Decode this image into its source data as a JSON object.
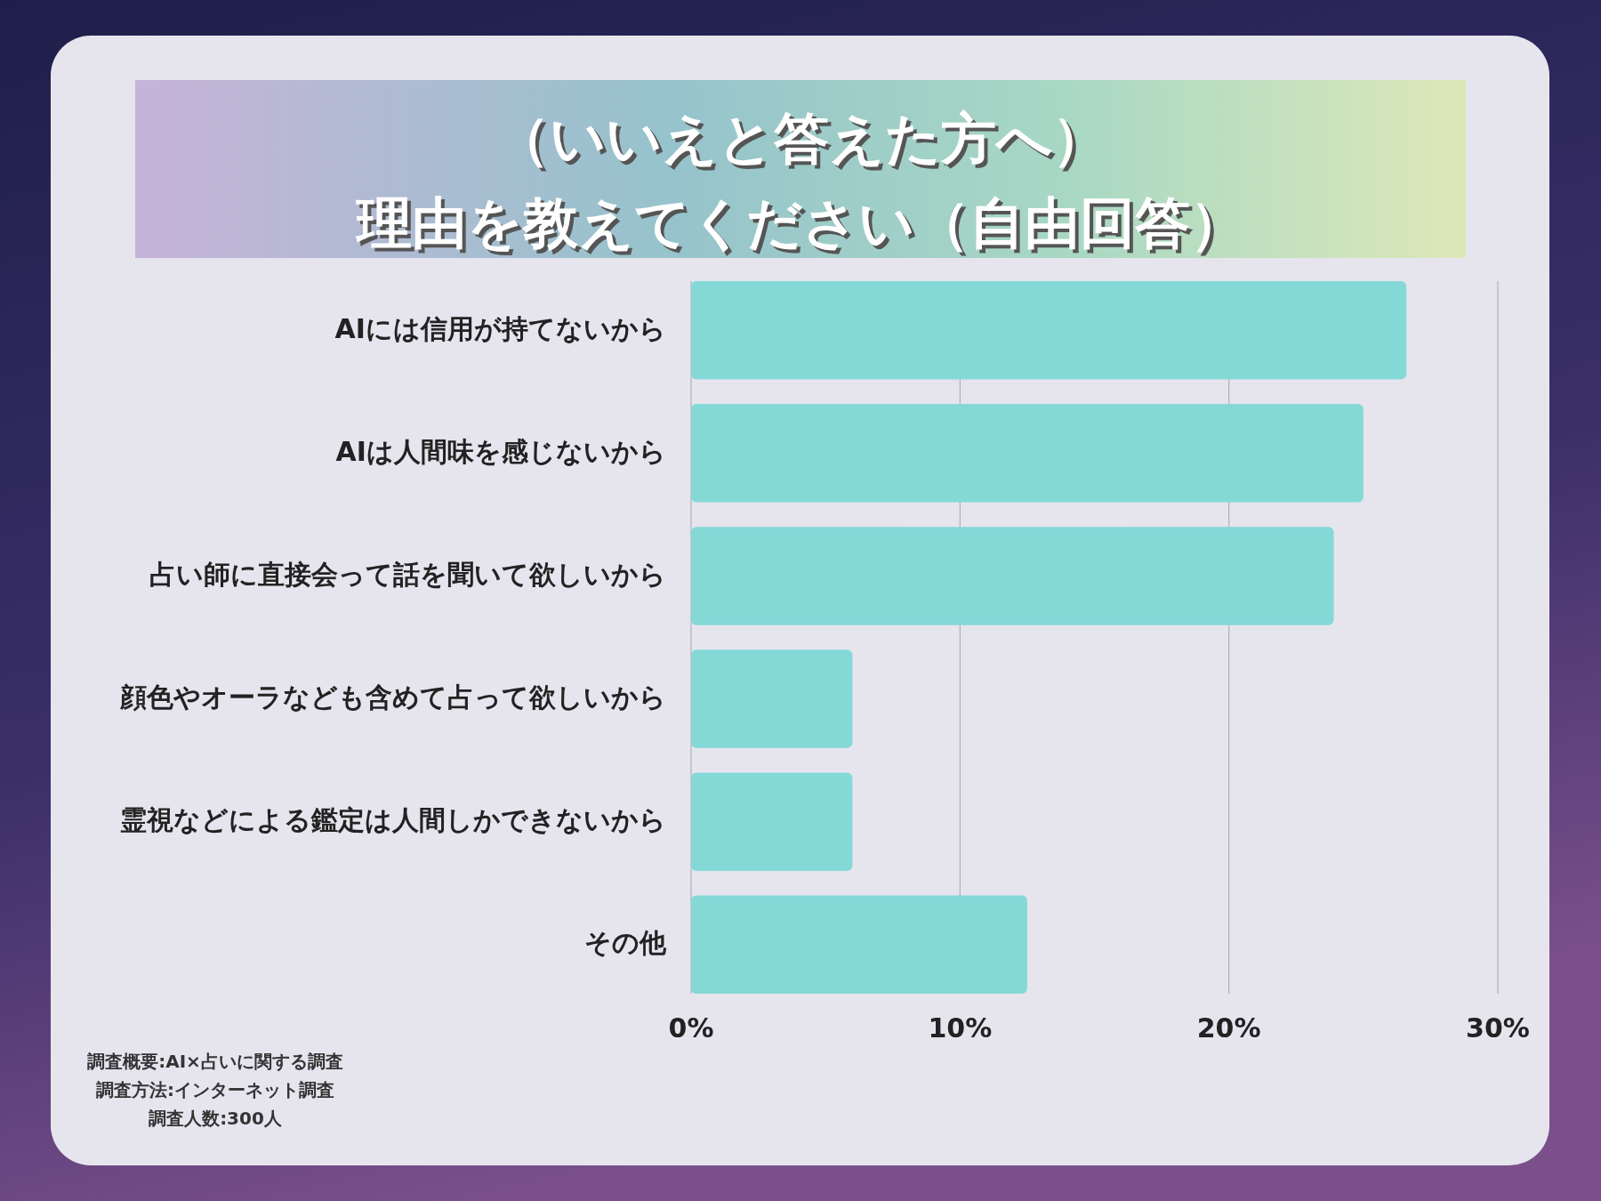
{
  "chart_data": {
    "type": "bar",
    "orientation": "horizontal",
    "title": "（いいえと答えた方へ）",
    "subtitle": "理由を教えてください（自由回答）",
    "categories": [
      "AIには信用が持てないから",
      "AIは人間味を感じないから",
      "占い師に直接会って話を聞いて欲しいから",
      "顔色やオーラなども含めて占って欲しいから",
      "霊視などによる鑑定は人間しかできないから",
      "その他"
    ],
    "values": [
      26.6,
      25.0,
      23.9,
      6.0,
      6.0,
      12.5
    ],
    "color": "#84d9d7",
    "xlim": [
      0,
      30
    ],
    "xticks": [
      {
        "value": 0,
        "label": "0%"
      },
      {
        "value": 10,
        "label": "10%"
      },
      {
        "value": 20,
        "label": "20%"
      },
      {
        "value": 30,
        "label": "30%"
      }
    ],
    "grid": "x",
    "annotations": [
      "調査概要:AI×占いに関する調査",
      "調査方法:インターネット調査",
      "調査人数:300人"
    ]
  }
}
